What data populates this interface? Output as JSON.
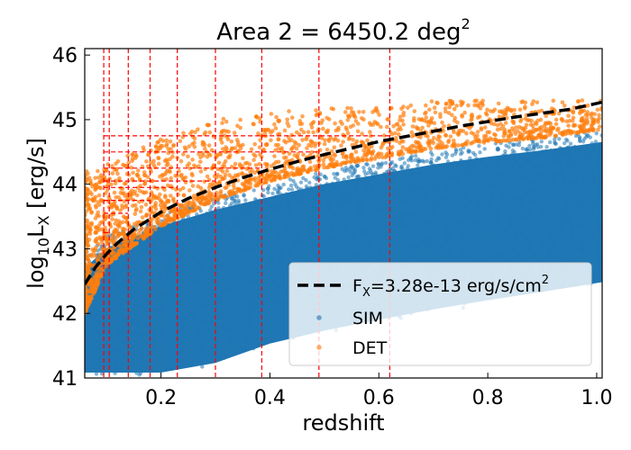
{
  "chart_data": {
    "type": "scatter",
    "title": {
      "main": "Area 2 = 6450.2 deg",
      "sup": "2"
    },
    "xlabel": "redshift",
    "ylabel": {
      "main": "log",
      "sub1": "10",
      "mid": "L",
      "sub2": "X",
      "tail": " [erg/s]"
    },
    "xlim": [
      0.06,
      1.01
    ],
    "ylim": [
      41,
      46.1
    ],
    "x_ticks": [
      {
        "value": 0.2,
        "label": "0.2"
      },
      {
        "value": 0.4,
        "label": "0.4"
      },
      {
        "value": 0.6,
        "label": "0.6"
      },
      {
        "value": 0.8,
        "label": "0.8"
      },
      {
        "value": 1.0,
        "label": "1.0"
      }
    ],
    "y_ticks": [
      {
        "value": 41,
        "label": "41"
      },
      {
        "value": 42,
        "label": "42"
      },
      {
        "value": 43,
        "label": "43"
      },
      {
        "value": 44,
        "label": "44"
      },
      {
        "value": 45,
        "label": "45"
      },
      {
        "value": 46,
        "label": "46"
      }
    ],
    "flux_limit_curve": {
      "label_main": "F",
      "label_sub": "X",
      "label_tail": "=3.28e-13 erg/s/cm",
      "label_sup": "2",
      "color": "#000000",
      "points": [
        [
          0.06,
          42.45
        ],
        [
          0.08,
          42.72
        ],
        [
          0.1,
          42.92
        ],
        [
          0.12,
          43.09
        ],
        [
          0.15,
          43.3
        ],
        [
          0.2,
          43.57
        ],
        [
          0.25,
          43.78
        ],
        [
          0.3,
          43.95
        ],
        [
          0.35,
          44.1
        ],
        [
          0.4,
          44.23
        ],
        [
          0.45,
          44.35
        ],
        [
          0.5,
          44.46
        ],
        [
          0.55,
          44.56
        ],
        [
          0.6,
          44.66
        ],
        [
          0.65,
          44.74
        ],
        [
          0.7,
          44.82
        ],
        [
          0.75,
          44.9
        ],
        [
          0.8,
          44.97
        ],
        [
          0.85,
          45.04
        ],
        [
          0.9,
          45.1
        ],
        [
          0.95,
          45.16
        ],
        [
          1.01,
          45.27
        ]
      ]
    },
    "series": [
      {
        "name": "SIM",
        "color": "#1f77b4",
        "lower_envelope": [
          [
            0.06,
            41.0
          ],
          [
            0.1,
            41.0
          ],
          [
            0.2,
            41.0
          ],
          [
            0.3,
            41.15
          ],
          [
            0.4,
            41.45
          ],
          [
            0.5,
            41.65
          ],
          [
            0.6,
            41.82
          ],
          [
            0.7,
            41.98
          ],
          [
            0.8,
            42.12
          ],
          [
            0.9,
            42.25
          ],
          [
            1.01,
            42.4
          ]
        ],
        "upper_envelope": [
          [
            0.06,
            42.9
          ],
          [
            0.1,
            43.2
          ],
          [
            0.2,
            43.55
          ],
          [
            0.3,
            43.8
          ],
          [
            0.4,
            44.0
          ],
          [
            0.5,
            44.2
          ],
          [
            0.6,
            44.35
          ],
          [
            0.7,
            44.5
          ],
          [
            0.8,
            44.62
          ],
          [
            0.9,
            44.72
          ],
          [
            1.01,
            44.85
          ]
        ]
      },
      {
        "name": "DET",
        "color": "#ff7f0e",
        "lower_envelope": [
          [
            0.06,
            42.0
          ],
          [
            0.1,
            42.75
          ],
          [
            0.2,
            43.35
          ],
          [
            0.3,
            43.75
          ],
          [
            0.4,
            44.05
          ],
          [
            0.5,
            44.25
          ],
          [
            0.6,
            44.4
          ],
          [
            0.7,
            44.55
          ],
          [
            0.8,
            44.65
          ],
          [
            0.9,
            44.72
          ],
          [
            1.01,
            44.85
          ]
        ],
        "upper_envelope": [
          [
            0.06,
            44.2
          ],
          [
            0.1,
            44.3
          ],
          [
            0.2,
            44.7
          ],
          [
            0.3,
            45.0
          ],
          [
            0.4,
            45.1
          ],
          [
            0.5,
            45.2
          ],
          [
            0.6,
            45.2
          ],
          [
            0.7,
            45.3
          ],
          [
            0.8,
            45.3
          ],
          [
            0.9,
            45.3
          ],
          [
            1.01,
            45.3
          ]
        ]
      }
    ],
    "bin_grid": {
      "color": "#ff0000",
      "x_edges": [
        0.095,
        0.105,
        0.14,
        0.18,
        0.23,
        0.3,
        0.385,
        0.49,
        0.62
      ],
      "y_edges": [
        43.05,
        43.25,
        43.55,
        43.75,
        43.95,
        44.05,
        44.25,
        44.5,
        44.75
      ]
    },
    "legend": {
      "position": "lower-right"
    },
    "grid": false
  }
}
